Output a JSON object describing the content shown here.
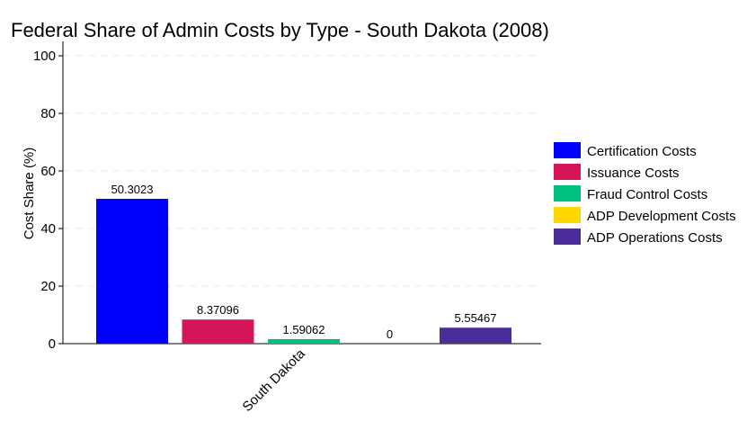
{
  "chart_data": {
    "type": "bar",
    "title": "Federal Share of Admin Costs by Type - South Dakota (2008)",
    "xlabel": "",
    "ylabel": "Cost Share (%)",
    "categories": [
      "South Dakota"
    ],
    "ylim": [
      0,
      105
    ],
    "yticks": [
      0,
      20,
      40,
      60,
      80,
      100
    ],
    "grid": true,
    "legend_position": "right",
    "series": [
      {
        "name": "Certification Costs",
        "color": "#0000ff",
        "values": [
          50.3023
        ],
        "label": "50.3023"
      },
      {
        "name": "Issuance Costs",
        "color": "#d6145a",
        "values": [
          8.37096
        ],
        "label": "8.37096"
      },
      {
        "name": "Fraud Control Costs",
        "color": "#00c080",
        "values": [
          1.59062
        ],
        "label": "1.59062"
      },
      {
        "name": "ADP Development Costs",
        "color": "#ffd700",
        "values": [
          0
        ],
        "label": "0"
      },
      {
        "name": "ADP Operations Costs",
        "color": "#4b2d9a",
        "values": [
          5.55467
        ],
        "label": "5.55467"
      }
    ]
  }
}
